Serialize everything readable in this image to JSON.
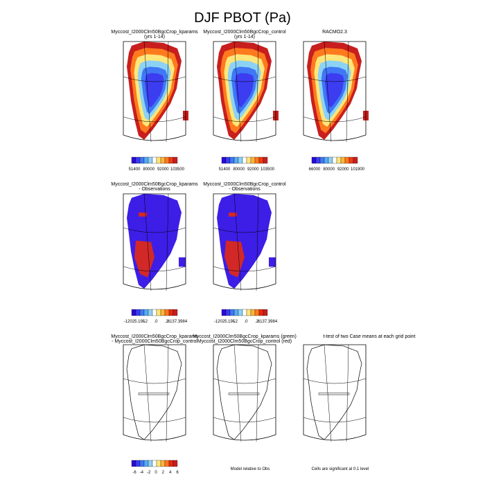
{
  "title": "DJF PBOT (Pa)",
  "rows": [
    {
      "panels": [
        {
          "title": [
            "Myccost_I2000Clm50BgcCrop_kparams",
            "(yrs 1-14)"
          ],
          "colorbar": [
            "51400",
            "80000",
            "92000",
            "103500"
          ]
        },
        {
          "title": [
            "Myccost_I2000Clm50BgcCrop_control",
            "(yrs 1-14)"
          ],
          "colorbar": [
            "51400",
            "80000",
            "92000",
            "103500"
          ]
        },
        {
          "title": [
            "RACMO2.3"
          ],
          "colorbar": [
            "66000",
            "80000",
            "92000",
            "101900"
          ]
        }
      ]
    },
    {
      "panels": [
        {
          "title": [
            "Myccost_I2000Clm50BgcCrop_kparams",
            "- Observations"
          ],
          "colorbar": [
            "-12025.195",
            "-.2",
            ".0",
            ".2",
            "6137.3984"
          ]
        },
        {
          "title": [
            "Myccost_I2000Clm50BgcCrop_control",
            "- Observations"
          ],
          "colorbar": [
            "-12025.195",
            "-.2",
            ".0",
            ".2",
            "6137.3984"
          ]
        }
      ]
    },
    {
      "panels": [
        {
          "title": [
            "Myccost_I2000Clm50BgcCrop_kparams",
            "- Myccost_I2000Clm50BgcCrop_control"
          ],
          "colorbar": [
            "-6",
            "-4",
            "-2",
            "0",
            "2",
            "4",
            "6"
          ]
        },
        {
          "title": [
            "Myccost_I2000Clm50BgcCrop_kparams (green)",
            "Myccost_I2000Clm50BgcCrop_control (red)"
          ],
          "note": "Model relative to Obs"
        },
        {
          "title": [
            "t-test of two Case means at each grid point"
          ],
          "note": "Cells are significant at 0.1 level"
        }
      ]
    }
  ]
}
